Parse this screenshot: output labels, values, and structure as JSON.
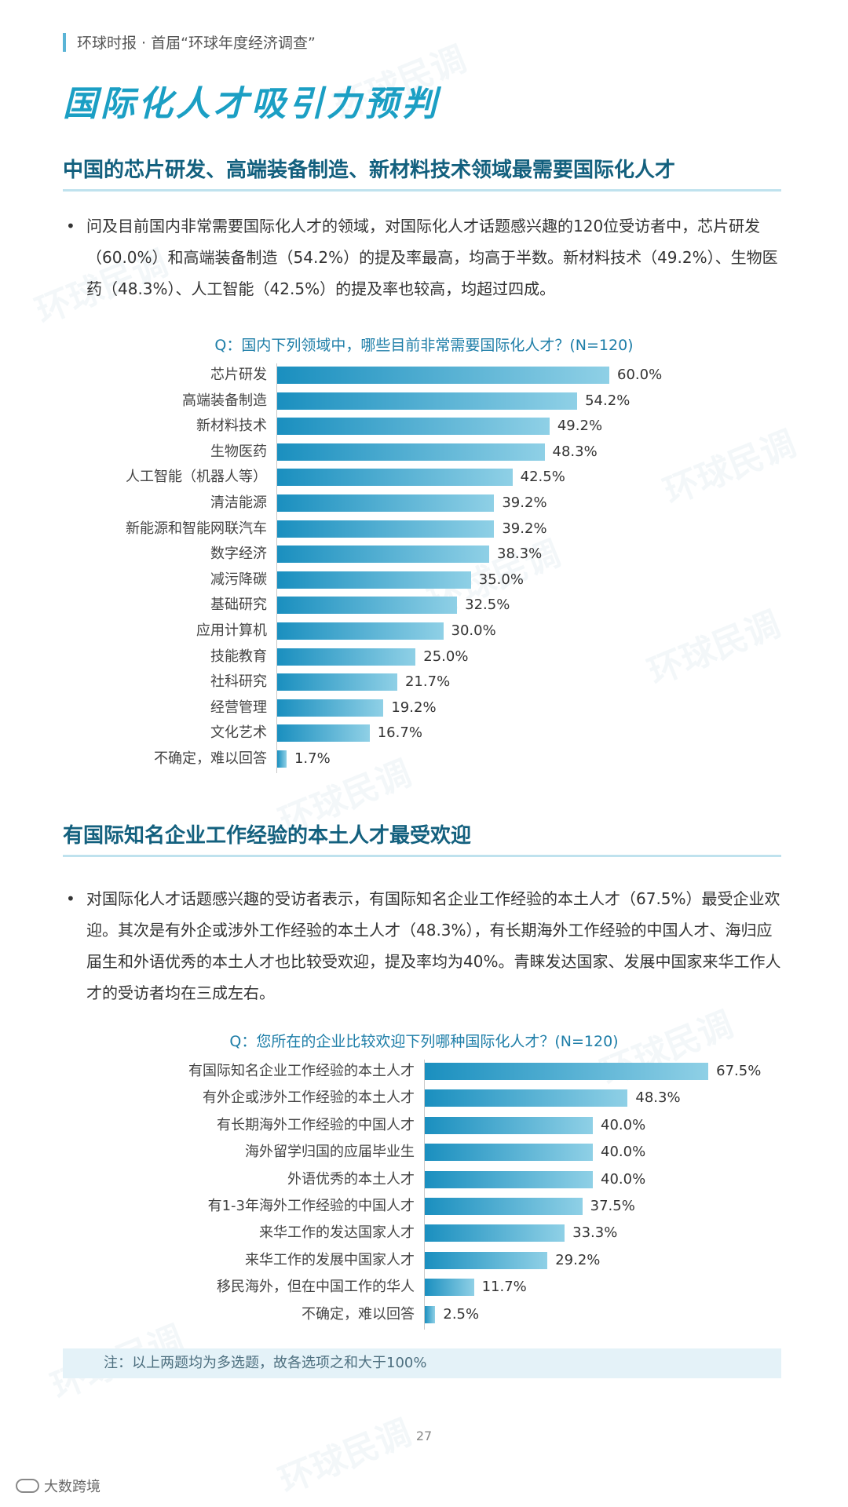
{
  "header": {
    "source_text": "环球时报 · 首届“环球年度经济调查”"
  },
  "page": {
    "title": "国际化人才吸引力预判",
    "number": "27"
  },
  "section1": {
    "heading": "中国的芯片研发、高端装备制造、新材料技术领域最需要国际化人才",
    "bullet": "问及目前国内非常需要国际化人才的领域，对国际化人才话题感兴趣的120位受访者中，芯片研发（60.0%）和高端装备制造（54.2%）的提及率最高，均高于半数。新材料技术（49.2%）、生物医药（48.3%）、人工智能（42.5%）的提及率也较高，均超过四成。"
  },
  "section2": {
    "heading": "有国际知名企业工作经验的本土人才最受欢迎",
    "bullet": "对国际化人才话题感兴趣的受访者表示，有国际知名企业工作经验的本土人才（67.5%）最受企业欢迎。其次是有外企或涉外工作经验的本土人才（48.3%），有长期海外工作经验的中国人才、海归应届生和外语优秀的本土人才也比较受欢迎，提及率均为40%。青睐发达国家、发展中国家来华工作人才的受访者均在三成左右。"
  },
  "note": "注：以上两题均为多选题，故各选项之和大于100%",
  "footer": {
    "logo_text": "大数跨境"
  },
  "watermark_text": "环球民调",
  "colors": {
    "title": "#1b9fc4",
    "heading": "#13607e",
    "bar_start": "#1a8fbf",
    "bar_end": "#8fd0e6",
    "note_bg": "#e4f2f8"
  },
  "chart_data": [
    {
      "type": "bar",
      "orientation": "horizontal",
      "title": "Q：国内下列领域中，哪些目前非常需要国际化人才？(N=120)",
      "categories": [
        "芯片研发",
        "高端装备制造",
        "新材料技术",
        "生物医药",
        "人工智能（机器人等）",
        "清洁能源",
        "新能源和智能网联汽车",
        "数字经济",
        "减污降碳",
        "基础研究",
        "应用计算机",
        "技能教育",
        "社科研究",
        "经营管理",
        "文化艺术",
        "不确定，难以回答"
      ],
      "values": [
        60.0,
        54.2,
        49.2,
        48.3,
        42.5,
        39.2,
        39.2,
        38.3,
        35.0,
        32.5,
        30.0,
        25.0,
        21.7,
        19.2,
        16.7,
        1.7
      ],
      "value_labels": [
        "60.0%",
        "54.2%",
        "49.2%",
        "48.3%",
        "42.5%",
        "39.2%",
        "39.2%",
        "38.3%",
        "35.0%",
        "32.5%",
        "30.0%",
        "25.0%",
        "21.7%",
        "19.2%",
        "16.7%",
        "1.7%"
      ],
      "unit": "%",
      "grid": false
    },
    {
      "type": "bar",
      "orientation": "horizontal",
      "title": "Q：您所在的企业比较欢迎下列哪种国际化人才？(N=120)",
      "categories": [
        "有国际知名企业工作经验的本土人才",
        "有外企或涉外工作经验的本土人才",
        "有长期海外工作经验的中国人才",
        "海外留学归国的应届毕业生",
        "外语优秀的本土人才",
        "有1-3年海外工作经验的中国人才",
        "来华工作的发达国家人才",
        "来华工作的发展中国家人才",
        "移民海外，但在中国工作的华人",
        "不确定，难以回答"
      ],
      "values": [
        67.5,
        48.3,
        40.0,
        40.0,
        40.0,
        37.5,
        33.3,
        29.2,
        11.7,
        2.5
      ],
      "value_labels": [
        "67.5%",
        "48.3%",
        "40.0%",
        "40.0%",
        "40.0%",
        "37.5%",
        "33.3%",
        "29.2%",
        "11.7%",
        "2.5%"
      ],
      "unit": "%",
      "grid": false
    }
  ]
}
